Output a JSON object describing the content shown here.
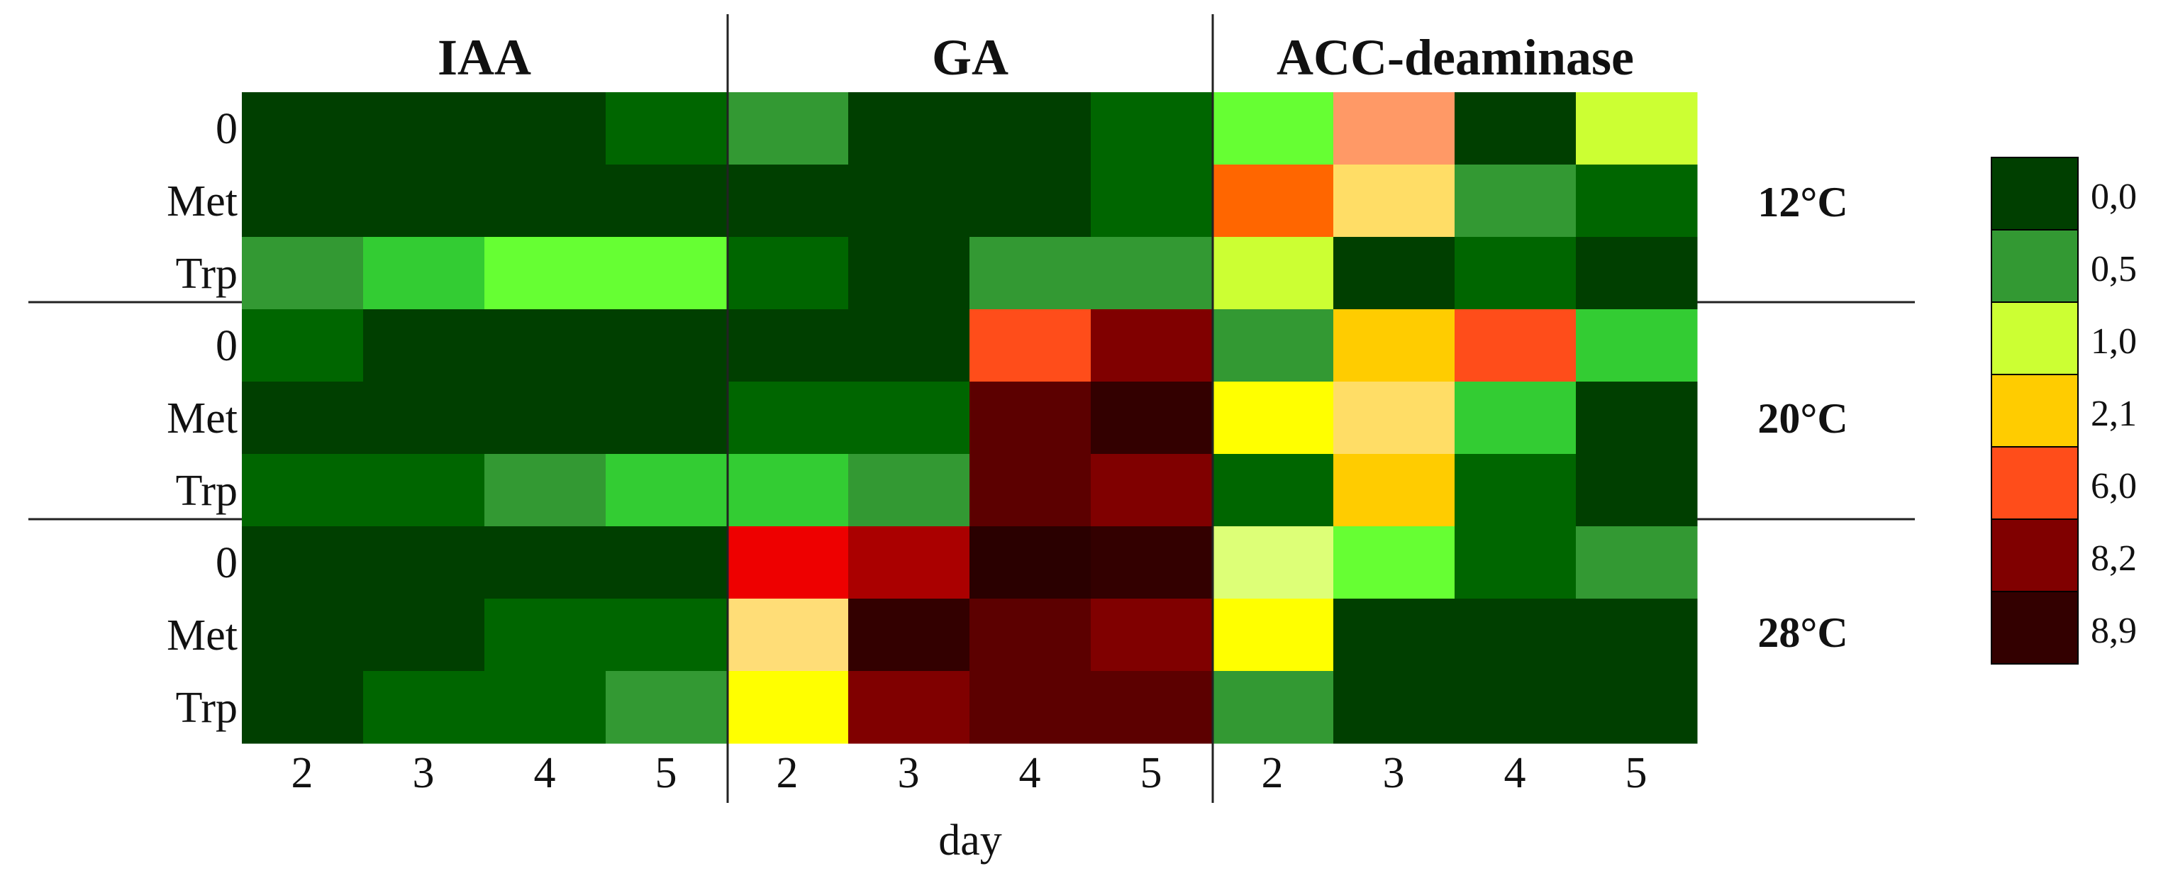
{
  "chart_data": {
    "type": "heatmap",
    "xlabel": "day",
    "groups": [
      "IAA",
      "GA",
      "ACC-deaminase"
    ],
    "days": [
      "2",
      "3",
      "4",
      "5"
    ],
    "temperatures": [
      "12°C",
      "20°C",
      "28°C"
    ],
    "treatments": [
      "0",
      "Met",
      "Trp"
    ],
    "legend": {
      "labels": [
        "0,0",
        "0,5",
        "1,0",
        "2,1",
        "6,0",
        "8,2",
        "8,9"
      ],
      "colors": [
        "#003f00",
        "#339933",
        "#ccff33",
        "#ffcc00",
        "#ff4d1a",
        "#800000",
        "#330000"
      ]
    },
    "values": [
      [
        0.0,
        0.0,
        0.0,
        0.2,
        0.5,
        0.0,
        0.0,
        0.2,
        0.9,
        3.6,
        0.0,
        1.1
      ],
      [
        0.0,
        0.0,
        0.0,
        0.0,
        0.0,
        0.0,
        0.0,
        0.2,
        5.5,
        1.8,
        0.5,
        0.2
      ],
      [
        0.5,
        0.7,
        0.8,
        0.8,
        0.2,
        0.0,
        0.5,
        0.5,
        1.0,
        0.0,
        0.2,
        0.0
      ],
      [
        0.2,
        0.0,
        0.0,
        0.0,
        0.0,
        0.0,
        6.0,
        8.2,
        0.5,
        2.1,
        6.0,
        0.7
      ],
      [
        0.0,
        0.0,
        0.0,
        0.0,
        0.2,
        0.2,
        8.6,
        8.9,
        1.4,
        1.8,
        0.7,
        0.0
      ],
      [
        0.2,
        0.2,
        0.5,
        0.7,
        0.7,
        0.5,
        8.6,
        8.2,
        0.2,
        2.1,
        0.2,
        0.0
      ],
      [
        0.0,
        0.0,
        0.0,
        0.0,
        7.2,
        7.8,
        8.9,
        8.9,
        1.2,
        0.8,
        0.2,
        0.5
      ],
      [
        0.0,
        0.0,
        0.2,
        0.2,
        1.8,
        8.9,
        8.6,
        8.2,
        1.4,
        0.0,
        0.0,
        0.0
      ],
      [
        0.0,
        0.2,
        0.2,
        0.5,
        1.4,
        8.2,
        8.6,
        8.6,
        0.5,
        0.0,
        0.0,
        0.0
      ]
    ]
  },
  "colors": {
    "cells": [
      [
        "#003f00",
        "#003f00",
        "#003f00",
        "#006600",
        "#339933",
        "#003f00",
        "#003f00",
        "#006600",
        "#66ff33",
        "#ff9966",
        "#003f00",
        "#ccff33"
      ],
      [
        "#003f00",
        "#003f00",
        "#003f00",
        "#003f00",
        "#003f00",
        "#003f00",
        "#003f00",
        "#006600",
        "#ff6600",
        "#ffdd66",
        "#339933",
        "#006600"
      ],
      [
        "#339933",
        "#33cc33",
        "#66ff33",
        "#66ff33",
        "#006600",
        "#003f00",
        "#339933",
        "#339933",
        "#ccff33",
        "#003f00",
        "#006600",
        "#003f00"
      ],
      [
        "#006600",
        "#003f00",
        "#003f00",
        "#003f00",
        "#003f00",
        "#003f00",
        "#ff4d1a",
        "#800000",
        "#339933",
        "#ffcc00",
        "#ff4d1a",
        "#33cc33"
      ],
      [
        "#003f00",
        "#003f00",
        "#003f00",
        "#003f00",
        "#006600",
        "#006600",
        "#5c0000",
        "#330000",
        "#ffff00",
        "#ffdd66",
        "#33cc33",
        "#003f00"
      ],
      [
        "#006600",
        "#006600",
        "#339933",
        "#33cc33",
        "#33cc33",
        "#339933",
        "#5c0000",
        "#800000",
        "#006600",
        "#ffcc00",
        "#006600",
        "#003f00"
      ],
      [
        "#003f00",
        "#003f00",
        "#003f00",
        "#003f00",
        "#ee0000",
        "#aa0000",
        "#2a0000",
        "#330000",
        "#ddff77",
        "#66ff33",
        "#006600",
        "#339933"
      ],
      [
        "#003f00",
        "#003f00",
        "#006600",
        "#006600",
        "#ffdd77",
        "#330000",
        "#5c0000",
        "#800000",
        "#ffff00",
        "#003f00",
        "#003f00",
        "#003f00"
      ],
      [
        "#003f00",
        "#006600",
        "#006600",
        "#339933",
        "#ffff00",
        "#800000",
        "#5c0000",
        "#5c0000",
        "#339933",
        "#003f00",
        "#003f00",
        "#003f00"
      ]
    ]
  }
}
